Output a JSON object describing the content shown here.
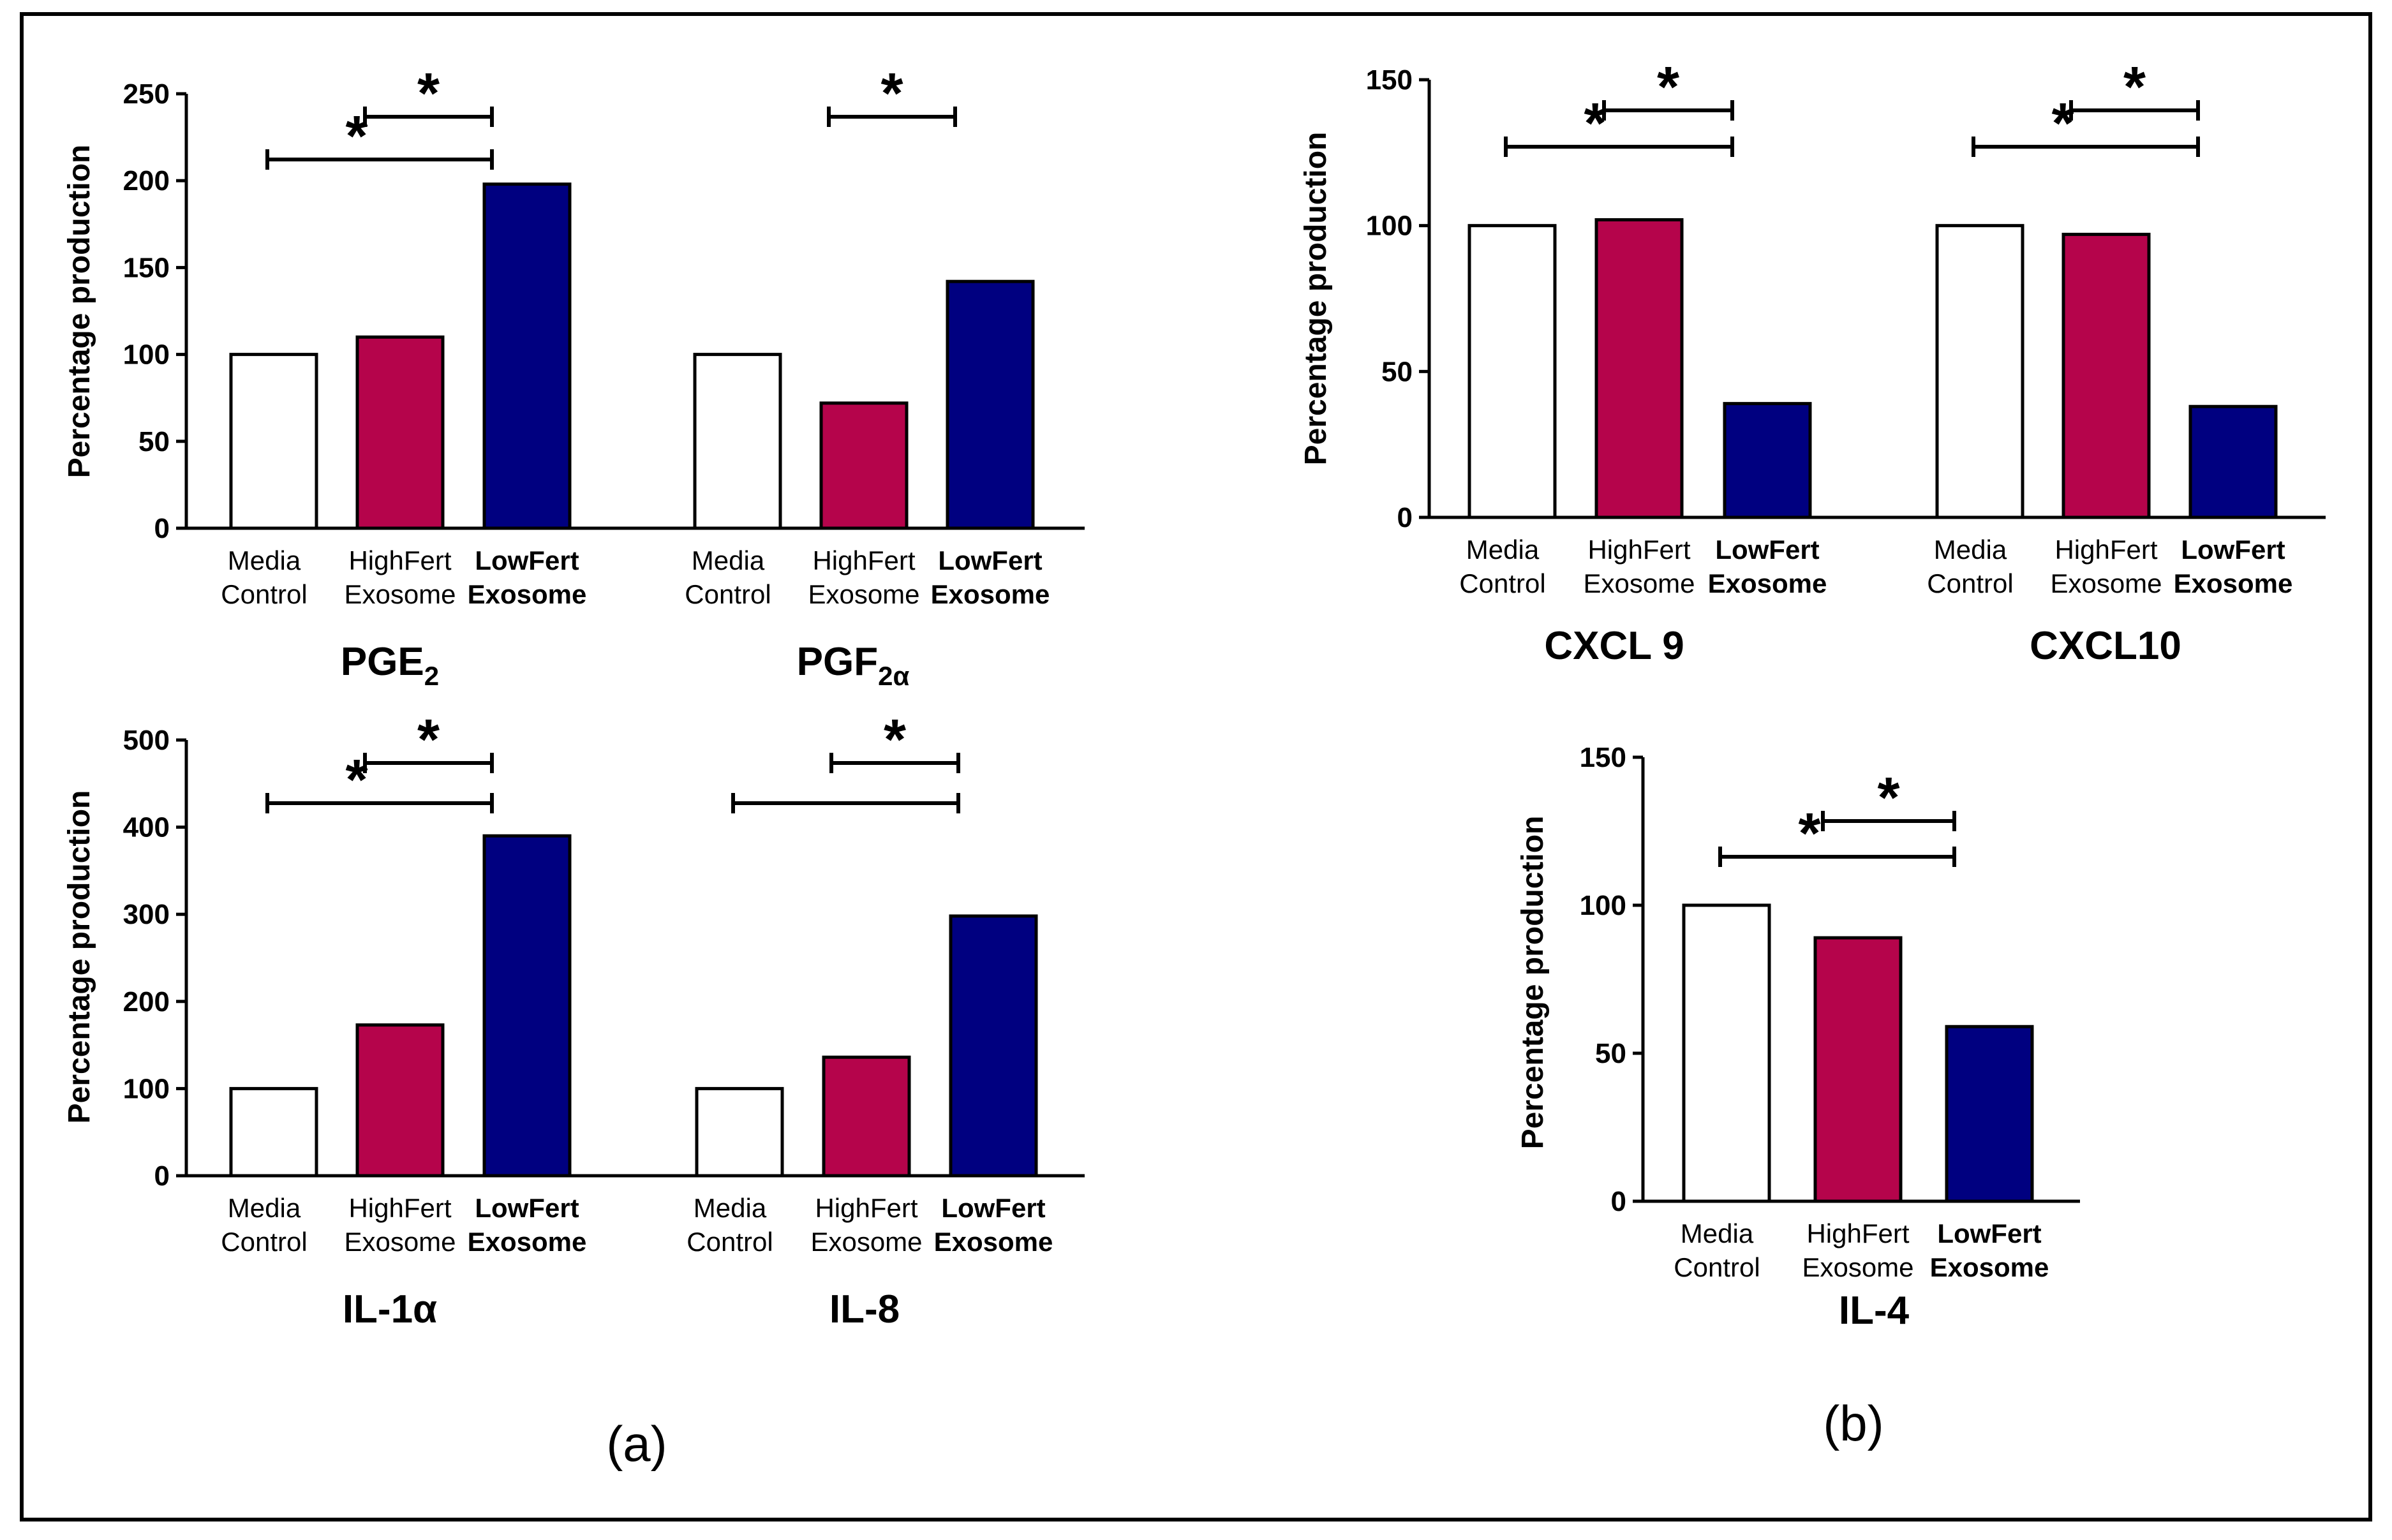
{
  "colors": {
    "media_control": "#ffffff",
    "highfert": "#b5044b",
    "lowfert": "#000080",
    "stroke": "#000000"
  },
  "panel_labels": [
    "(a)",
    "(b)"
  ],
  "chart_data": [
    {
      "type": "bar",
      "panel": "(a)",
      "ylabel": "Percentage production",
      "ylim": [
        0,
        250
      ],
      "yticks": [
        0,
        50,
        100,
        150,
        200,
        250
      ],
      "groups": [
        {
          "label": "PGE",
          "label_sub": "2",
          "categories": [
            [
              "Media",
              "Control"
            ],
            [
              "HighFert",
              "Exosome"
            ],
            [
              "LowFert",
              "Exosome"
            ]
          ],
          "values": [
            100,
            110,
            198
          ],
          "significance": [
            {
              "from": 0,
              "to": 2,
              "label": "*"
            },
            {
              "from": 1,
              "to": 2,
              "label": "*"
            }
          ]
        },
        {
          "label": "PGF",
          "label_sub": "2α",
          "categories": [
            [
              "Media",
              "Control"
            ],
            [
              "HighFert",
              "Exosome"
            ],
            [
              "LowFert",
              "Exosome"
            ]
          ],
          "values": [
            100,
            72,
            142
          ],
          "significance": [
            {
              "from": 1,
              "to": 2,
              "label": "*"
            }
          ]
        }
      ]
    },
    {
      "type": "bar",
      "panel": "(a)",
      "ylabel": "Percentage production",
      "ylim": [
        0,
        500
      ],
      "yticks": [
        0,
        100,
        200,
        300,
        400,
        500
      ],
      "groups": [
        {
          "label": "IL-1α",
          "label_sub": "",
          "categories": [
            [
              "Media",
              "Control"
            ],
            [
              "HighFert",
              "Exosome"
            ],
            [
              "LowFert",
              "Exosome"
            ]
          ],
          "values": [
            100,
            173,
            390
          ],
          "significance": [
            {
              "from": 0,
              "to": 2,
              "label": "*"
            },
            {
              "from": 1,
              "to": 2,
              "label": "*"
            }
          ]
        },
        {
          "label": "IL-8",
          "label_sub": "",
          "categories": [
            [
              "Media",
              "Control"
            ],
            [
              "HighFert",
              "Exosome"
            ],
            [
              "LowFert",
              "Exosome"
            ]
          ],
          "values": [
            100,
            136,
            298
          ],
          "significance": [
            {
              "from": 0,
              "to": 2,
              "label": ""
            },
            {
              "from": 1,
              "to": 2,
              "label": "*"
            }
          ]
        }
      ]
    },
    {
      "type": "bar",
      "panel": "(b)",
      "ylabel": "Percentage production",
      "ylim": [
        0,
        150
      ],
      "yticks": [
        0,
        50,
        100,
        150
      ],
      "groups": [
        {
          "label": "CXCL 9",
          "label_sub": "",
          "categories": [
            [
              "Media",
              "Control"
            ],
            [
              "HighFert",
              "Exosome"
            ],
            [
              "LowFert",
              "Exosome"
            ]
          ],
          "values": [
            100,
            102,
            39
          ],
          "significance": [
            {
              "from": 0,
              "to": 2,
              "label": "*"
            },
            {
              "from": 1,
              "to": 2,
              "label": "*"
            }
          ]
        },
        {
          "label": "CXCL10",
          "label_sub": "",
          "categories": [
            [
              "Media",
              "Control"
            ],
            [
              "HighFert",
              "Exosome"
            ],
            [
              "LowFert",
              "Exosome"
            ]
          ],
          "values": [
            100,
            97,
            38
          ],
          "significance": [
            {
              "from": 0,
              "to": 2,
              "label": "*"
            },
            {
              "from": 1,
              "to": 2,
              "label": "*"
            }
          ]
        }
      ]
    },
    {
      "type": "bar",
      "panel": "(b)",
      "ylabel": "Percentage production",
      "ylim": [
        0,
        150
      ],
      "yticks": [
        0,
        50,
        100,
        150
      ],
      "groups": [
        {
          "label": "IL-4",
          "label_sub": "",
          "categories": [
            [
              "Media",
              "Control"
            ],
            [
              "HighFert",
              "Exosome"
            ],
            [
              "LowFert",
              "Exosome"
            ]
          ],
          "values": [
            100,
            89,
            59
          ],
          "significance": [
            {
              "from": 0,
              "to": 2,
              "label": "*"
            },
            {
              "from": 1,
              "to": 2,
              "label": "*"
            }
          ]
        }
      ]
    }
  ]
}
